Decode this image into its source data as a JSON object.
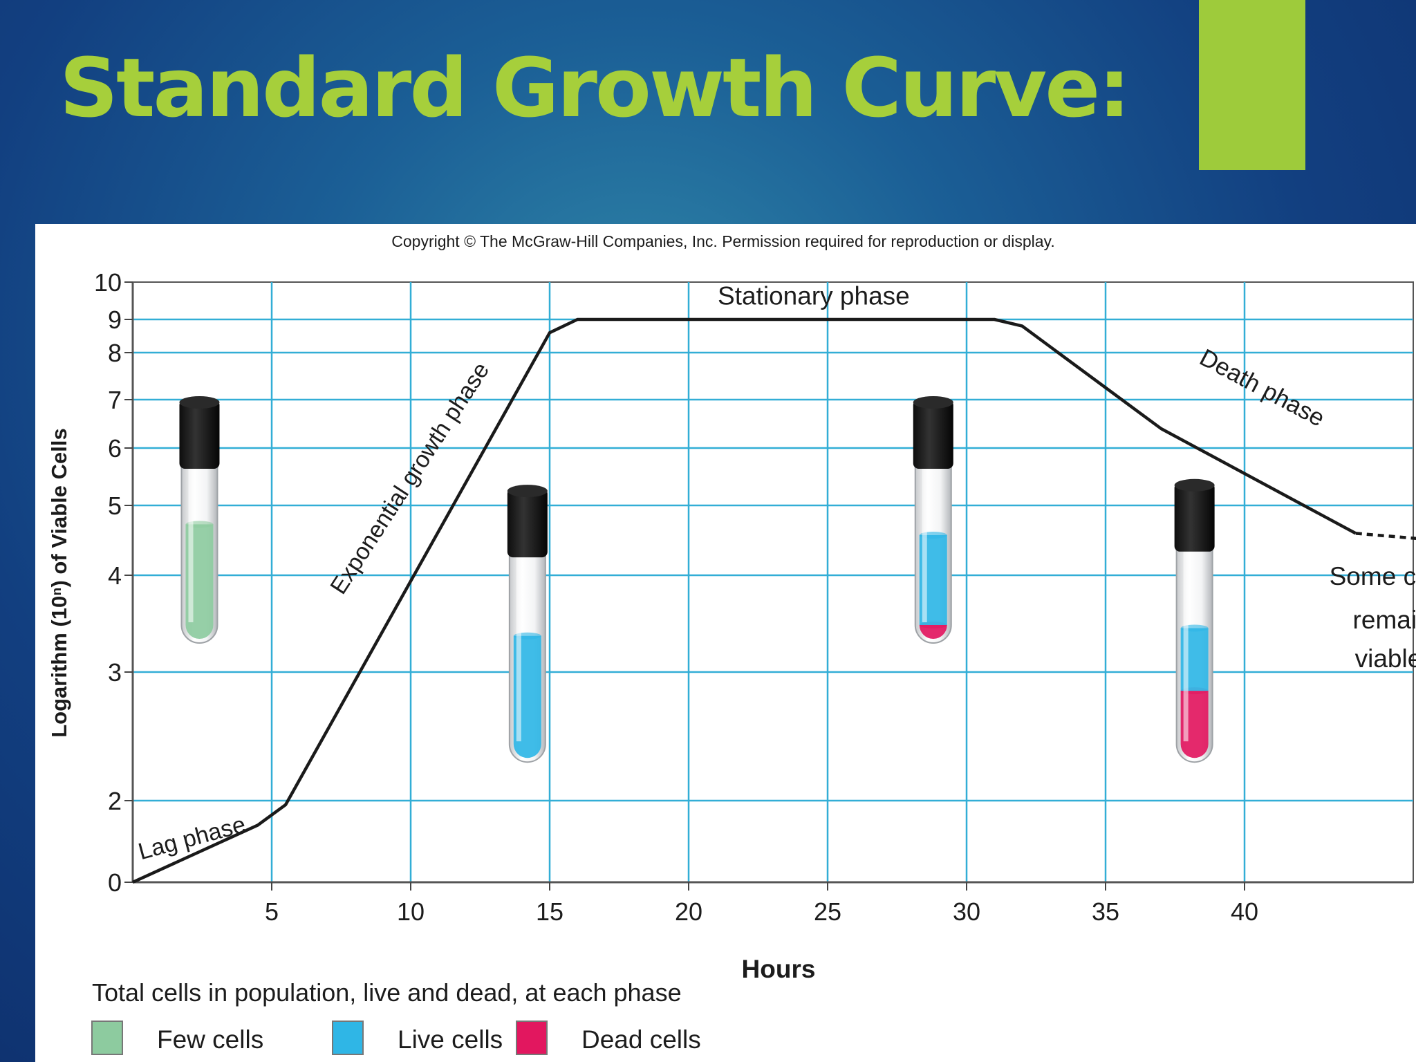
{
  "slide": {
    "title": "Standard Growth Curve:",
    "accent_color": "#9ecb3b",
    "title_color": "#a6cf3b"
  },
  "figure": {
    "copyright": "Copyright © The McGraw-Hill Companies, Inc. Permission required for reproduction or display."
  },
  "chart_data": {
    "type": "line",
    "xlabel": "Hours",
    "ylabel": "Logarithm (10ⁿ) of Viable Cells",
    "xlim": [
      0,
      45
    ],
    "x_ticks": [
      5,
      10,
      15,
      20,
      25,
      30,
      35,
      40
    ],
    "y_ticks": [
      0,
      2,
      3,
      4,
      5,
      6,
      7,
      8,
      9,
      10
    ],
    "grid": true,
    "series": [
      {
        "x": [
          0,
          4.5,
          5.5,
          15,
          16,
          30,
          31,
          32,
          37,
          44
        ],
        "y": [
          0,
          1.4,
          1.9,
          8.6,
          9,
          9,
          9,
          8.8,
          6.4,
          4.6
        ],
        "color": "#1a1a1a"
      },
      {
        "x": [
          44,
          47
        ],
        "y": [
          4.6,
          4.5
        ],
        "dashed": true,
        "color": "#1a1a1a"
      }
    ],
    "annotations": [
      {
        "text": "Lag phase",
        "x": 2.2,
        "y": 0.9
      },
      {
        "text": "Exponential growth phase",
        "x": 10.2,
        "y": 5.4
      },
      {
        "text": "Stationary phase",
        "x": 24.5,
        "y": 9.4
      },
      {
        "text": "Death phase",
        "x": 40.5,
        "y": 7.1
      },
      {
        "text": "Some cells",
        "x": 45.3,
        "y": 3.9
      },
      {
        "text": "remain",
        "x": 45.3,
        "y": 3.45
      },
      {
        "text": "viable.",
        "x": 45.3,
        "y": 3.05
      }
    ],
    "tubes": [
      {
        "phase": "lag",
        "x": 2.4,
        "y_top": 7.0,
        "y_bottom": 3.3,
        "segments": [
          {
            "type": "few",
            "from": 0,
            "to": 0.66
          }
        ]
      },
      {
        "phase": "exponential",
        "x": 14.2,
        "y_top": 5.3,
        "y_bottom": 2.3,
        "segments": [
          {
            "type": "live",
            "from": 0,
            "to": 0.6
          }
        ]
      },
      {
        "phase": "stationary",
        "x": 28.8,
        "y_top": 7.0,
        "y_bottom": 3.3,
        "segments": [
          {
            "type": "dead",
            "from": 0,
            "to": 0.1
          },
          {
            "type": "live",
            "from": 0.1,
            "to": 0.6
          }
        ]
      },
      {
        "phase": "death",
        "x": 38.2,
        "y_top": 5.4,
        "y_bottom": 2.3,
        "segments": [
          {
            "type": "dead",
            "from": 0,
            "to": 0.33
          },
          {
            "type": "live",
            "from": 0.33,
            "to": 0.62
          }
        ]
      }
    ],
    "legend": {
      "title": "Total cells in population, live and dead, at each phase",
      "placement": "bottom-left",
      "items": [
        {
          "label": "Few cells",
          "color": "#8dcb9f",
          "key": "few"
        },
        {
          "label": "Live cells",
          "color": "#2fb6e6",
          "key": "live"
        },
        {
          "label": "Dead cells",
          "color": "#e2175f",
          "key": "dead"
        }
      ]
    }
  }
}
